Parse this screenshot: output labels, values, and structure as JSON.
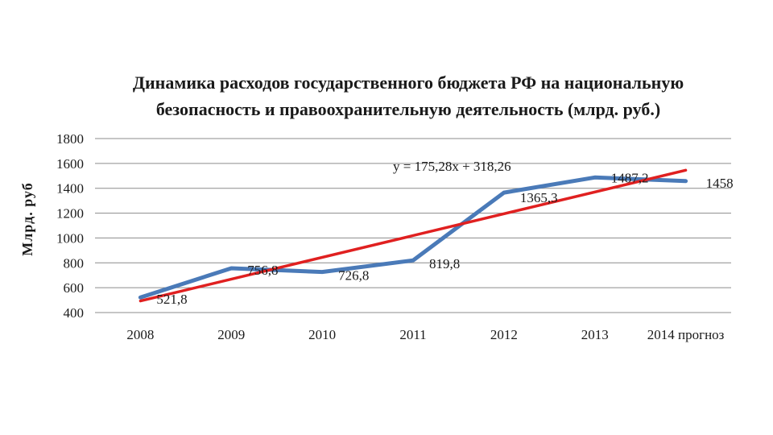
{
  "chart_data": {
    "type": "line",
    "title_lines": [
      "Динамика расходов государственного бюджета РФ на национальную",
      "безопасность и правоохранительную деятельность  (млрд. руб.)"
    ],
    "ylabel": "Млрд. руб",
    "xlabel": "",
    "categories": [
      "2008",
      "2009",
      "2010",
      "2011",
      "2012",
      "2013",
      "2014 прогноз"
    ],
    "ylim": [
      400,
      1800
    ],
    "yticks": [
      "400",
      "600",
      "800",
      "1000",
      "1200",
      "1400",
      "1600",
      "1800"
    ],
    "grid": true,
    "series": [
      {
        "values": [
          521.8,
          756.8,
          726.8,
          819.8,
          1365.3,
          1487.2,
          1458
        ],
        "labels": [
          "521,8",
          "756,8",
          "726,8",
          "819,8",
          "1365,3",
          "1487,2",
          "1458"
        ],
        "color": "#4a7ab8"
      }
    ],
    "trendline": {
      "type": "linear",
      "slope": 175.28,
      "intercept": 318.26,
      "equation": "y = 175,28x + 318,26",
      "color": "#e02020"
    }
  }
}
